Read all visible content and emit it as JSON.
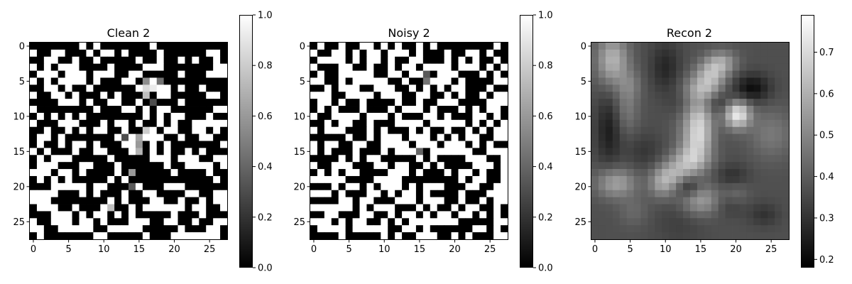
{
  "chart_data": [
    {
      "type": "heatmap",
      "title": "Clean 2",
      "colormap": "gray",
      "x_ticks": [
        "0",
        "5",
        "10",
        "15",
        "20",
        "25"
      ],
      "y_ticks": [
        "0",
        "5",
        "10",
        "15",
        "20",
        "25"
      ],
      "xlim": [
        -0.5,
        27.5
      ],
      "ylim": [
        27.5,
        -0.5
      ],
      "colorbar": {
        "vmin": 0.0,
        "vmax": 1.0,
        "ticks": [
          "0.0",
          "0.2",
          "0.4",
          "0.6",
          "0.8",
          "1.0"
        ]
      },
      "pixels": [
        "0000000101000000010000000000",
        "1001100010110100001000000110",
        "0011001001000001001001010010",
        "1010111000010000111000000011",
        "0111011101110011000001000111",
        "1010111101000110011000000000",
        "0011010010000001011101001000",
        "1001101000101000101100000110",
        "0000111010011001010001000000",
        "1000000001000110101100000011",
        "0101010100000000101011000100",
        "1000111000101101001010011111",
        "0010010101100100110110011010",
        "0110100000001011111001001100",
        "0100101101000110010100000001",
        "1010001001100010010100101000",
        "0101110000010000011101110011",
        "0111000110001000000100111101",
        "1110110100001000000010000100",
        "0101010000010100000000000010",
        "0001111101100011000111000000",
        "1111000101000100110000110011",
        "1110000000010100011001001011",
        "0111001000100010111111011001",
        "0001110101101010000010001000",
        "1001110110100011100110010011",
        "1100111110011111000001000110",
        "0100000001100000100011111110"
      ],
      "gray_cells": [
        [
          5,
          16,
          0.55
        ],
        [
          5,
          18,
          0.45
        ],
        [
          6,
          16,
          0.85
        ],
        [
          6,
          17,
          0.92
        ],
        [
          7,
          16,
          0.75
        ],
        [
          8,
          17,
          0.3
        ],
        [
          12,
          16,
          0.8
        ],
        [
          13,
          13,
          0.3
        ],
        [
          13,
          15,
          0.65
        ],
        [
          14,
          15,
          0.6
        ],
        [
          15,
          15,
          0.7
        ],
        [
          18,
          14,
          0.6
        ],
        [
          20,
          14,
          0.35
        ],
        [
          23,
          11,
          0.75
        ]
      ]
    },
    {
      "type": "heatmap",
      "title": "Noisy 2",
      "colormap": "gray",
      "x_ticks": [
        "0",
        "5",
        "10",
        "15",
        "20",
        "25"
      ],
      "y_ticks": [
        "0",
        "5",
        "10",
        "15",
        "20",
        "25"
      ],
      "xlim": [
        -0.5,
        27.5
      ],
      "ylim": [
        27.5,
        -0.5
      ],
      "colorbar": {
        "vmin": 0.0,
        "vmax": 1.0,
        "ticks": [
          "0.0",
          "0.2",
          "0.4",
          "0.6",
          "0.8",
          "1.0"
        ]
      },
      "pixels": [
        "0100100110101001010000000010",
        "1001101011011101000100110100",
        "0111101011010011000101010010",
        "1000110010010110111101110101",
        "0100111110011011101110001010",
        "1100101111100100111101000011",
        "0010111001110010101011000100",
        "1110011110111001100101001011",
        "0110100100001001001110000111",
        "0101000100010111010001010110",
        "1001111011101000110100011010",
        "0010110010001111011111010101",
        "1011100010100010100100101011",
        "0000010010111011101010110011",
        "1011001100111101110111010100",
        "1010001000101110011111100111",
        "0000101011000001010000111001",
        "1001110001101100101000011101",
        "0101011000011101000101101001",
        "1111100001111000000001011001",
        "0001011010111010111000110011",
        "1110100011010110100001000111",
        "0000110110001110111001001011",
        "1111110101110001010010110010",
        "0011000110010110101101101010",
        "1110101100101011111110000011",
        "0111101111100110100000011010",
        "0000100000101001110010100011"
      ],
      "gray_cells": [
        [
          4,
          16,
          0.35
        ],
        [
          5,
          16,
          0.45
        ],
        [
          15,
          15,
          0.4
        ]
      ]
    },
    {
      "type": "heatmap",
      "title": "Recon 2",
      "colormap": "gray",
      "x_ticks": [
        "0",
        "5",
        "10",
        "15",
        "20",
        "25"
      ],
      "y_ticks": [
        "0",
        "5",
        "10",
        "15",
        "20",
        "25"
      ],
      "xlim": [
        -0.5,
        27.5
      ],
      "ylim": [
        27.5,
        -0.5
      ],
      "colorbar": {
        "vmin": 0.18,
        "vmax": 0.79,
        "ticks": [
          "0.2",
          "0.3",
          "0.4",
          "0.5",
          "0.6",
          "0.7"
        ]
      },
      "base_value": 0.37,
      "blobs": [
        [
          2,
          2.5,
          2.5,
          1.6,
          0.24
        ],
        [
          3,
          10,
          2.5,
          1.5,
          -0.1
        ],
        [
          9,
          4.5,
          2.5,
          1.2,
          0.1
        ],
        [
          12,
          2,
          3.5,
          1.3,
          -0.12
        ],
        [
          5.5,
          5,
          1.5,
          1.2,
          0.08
        ],
        [
          13,
          14,
          4,
          1.6,
          0.16
        ],
        [
          8,
          17,
          1.2,
          2,
          -0.12
        ],
        [
          2.3,
          18,
          1.2,
          1.5,
          0.18
        ],
        [
          4,
          16.5,
          1.4,
          1.5,
          0.2
        ],
        [
          6.5,
          15.3,
          1.5,
          1.8,
          0.22
        ],
        [
          10,
          15,
          1.5,
          1.3,
          0.16
        ],
        [
          13,
          15,
          1.5,
          1.3,
          0.16
        ],
        [
          8,
          12.3,
          1.4,
          1.4,
          -0.05
        ],
        [
          9.7,
          20.2,
          1.4,
          1.3,
          0.38
        ],
        [
          6,
          22.3,
          1.4,
          1.8,
          -0.16
        ],
        [
          12.5,
          25,
          2.5,
          2.2,
          0.1
        ],
        [
          16,
          14,
          1.3,
          1.8,
          0.16
        ],
        [
          18,
          11.5,
          1.5,
          1.6,
          0.18
        ],
        [
          19.5,
          9.5,
          1.5,
          1.3,
          0.18
        ],
        [
          19.5,
          3,
          1.5,
          2,
          0.2
        ],
        [
          20,
          13.3,
          1.1,
          1.2,
          -0.15
        ],
        [
          18.5,
          19.5,
          1.2,
          1.6,
          -0.08
        ],
        [
          22,
          15,
          1.5,
          2,
          0.18
        ],
        [
          21.5,
          20,
          1.4,
          1.3,
          0.1
        ],
        [
          22.5,
          19.5,
          1.2,
          1.5,
          -0.1
        ],
        [
          24,
          24,
          1.2,
          1.5,
          -0.07
        ],
        [
          23.5,
          5.5,
          1.5,
          1.5,
          0.06
        ],
        [
          25,
          12,
          2.5,
          2.5,
          -0.04
        ],
        [
          15,
          7,
          1.8,
          1.8,
          -0.06
        ]
      ]
    }
  ]
}
